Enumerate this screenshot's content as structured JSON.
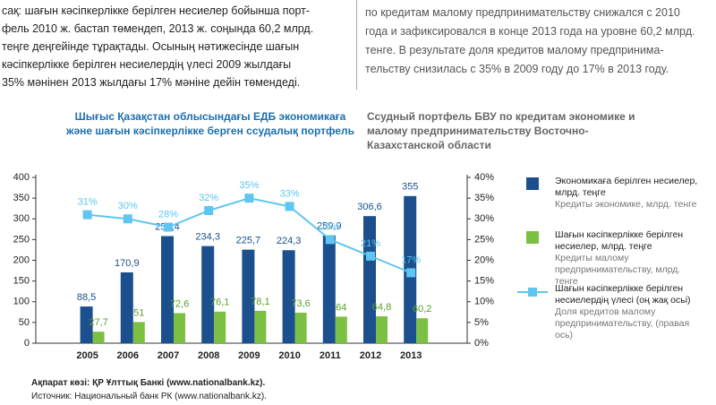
{
  "article": {
    "left": [
      "сақ: шағын кәсіпкерлікке берілген несиелер бойынша порт-",
      "фель 2010 ж. бастап төмендеп, 2013 ж. соңында 60,2 млрд.",
      "теңге деңгейінде тұрақтады. Осының нәтижесінде шағын",
      "кәсіпкерлікке берілген несиелердің үлесі 2009 жылдағы",
      "35% мәнінен 2013 жылдағы 17% мәніне дейін төмендеді."
    ],
    "right": [
      "по кредитам малому предпринимательству снижался с 2010",
      "года и зафиксировался в конце 2013 года на уровне 60,2 млрд.",
      "тенге. В результате доля кредитов малому предпринима-",
      "тельству снизилась с 35% в 2009 году до 17% в 2013 году."
    ]
  },
  "chart_data": {
    "type": "bar_line",
    "title": "Шығыс Қазақстан облысындағы ЕДБ экономикаға және шағын кәсіпкерлікке берген ссудалық портфель",
    "subtitle": "Ссудный портфель БВУ по кредитам экономике и малому предпринимательству Восточно-Казахстанской области",
    "categories": [
      "2005",
      "2006",
      "2007",
      "2008",
      "2009",
      "2010",
      "2011",
      "2012",
      "2013"
    ],
    "series": [
      {
        "name": "Экономикаға берілген несиелер, млрд. теңге",
        "note": "Кредиты экономике, млрд. тенге",
        "color": "#1b4f8e",
        "values": [
          88.5,
          170.9,
          258.4,
          234.3,
          225.7,
          224.3,
          259.9,
          306.6,
          355
        ],
        "value_labels": [
          "88,5",
          "170,9",
          "258,4",
          "234,3",
          "225,7",
          "224,3",
          "259,9",
          "306,6",
          "355"
        ]
      },
      {
        "name": "Шағын кәсіпкерлікке берілген несиелер, млрд. теңге",
        "note": "Кредиты малому предпринимательству, млрд. тенге",
        "color": "#7bc043",
        "values": [
          27.7,
          51,
          72.6,
          76.1,
          78.1,
          73.6,
          64,
          64.8,
          60.2
        ],
        "value_labels": [
          "27,7",
          "51",
          "72,6",
          "76,1",
          "78,1",
          "73,6",
          "64",
          "64,8",
          "60,2"
        ]
      },
      {
        "name": "Шағын кәсіпкерлікке берілген несиелердің үлесі (оң жақ осьі)",
        "note": "Доля кредитов малому предпринимательству, (правая ось)",
        "color": "#5ec6f0",
        "axis": "y2",
        "values": [
          31,
          30,
          28,
          32,
          35,
          33,
          25,
          21,
          17
        ],
        "value_labels": [
          "31%",
          "30%",
          "28%",
          "32%",
          "35%",
          "33%",
          "25%",
          "21%",
          "17%"
        ]
      }
    ],
    "ylim": [
      0,
      400
    ],
    "yticks": [
      0,
      50,
      100,
      150,
      200,
      250,
      300,
      350,
      400
    ],
    "y2lim": [
      0,
      40
    ],
    "y2ticks": [
      {
        "value": 0,
        "label": "0%"
      },
      {
        "value": 5,
        "label": "5%"
      },
      {
        "value": 10,
        "label": "10%"
      },
      {
        "value": 15,
        "label": "15%"
      },
      {
        "value": 20,
        "label": "20%"
      },
      {
        "value": 25,
        "label": "25%"
      },
      {
        "value": 30,
        "label": "30%"
      },
      {
        "value": 35,
        "label": "35%"
      },
      {
        "value": 40,
        "label": "40%"
      }
    ]
  },
  "source": [
    "Ақпарат көзі: ҚР Ұлттық Банкі (www.nationalbank.kz).",
    "Источник: Национальный банк РК (www.nationalbank.kz)."
  ]
}
